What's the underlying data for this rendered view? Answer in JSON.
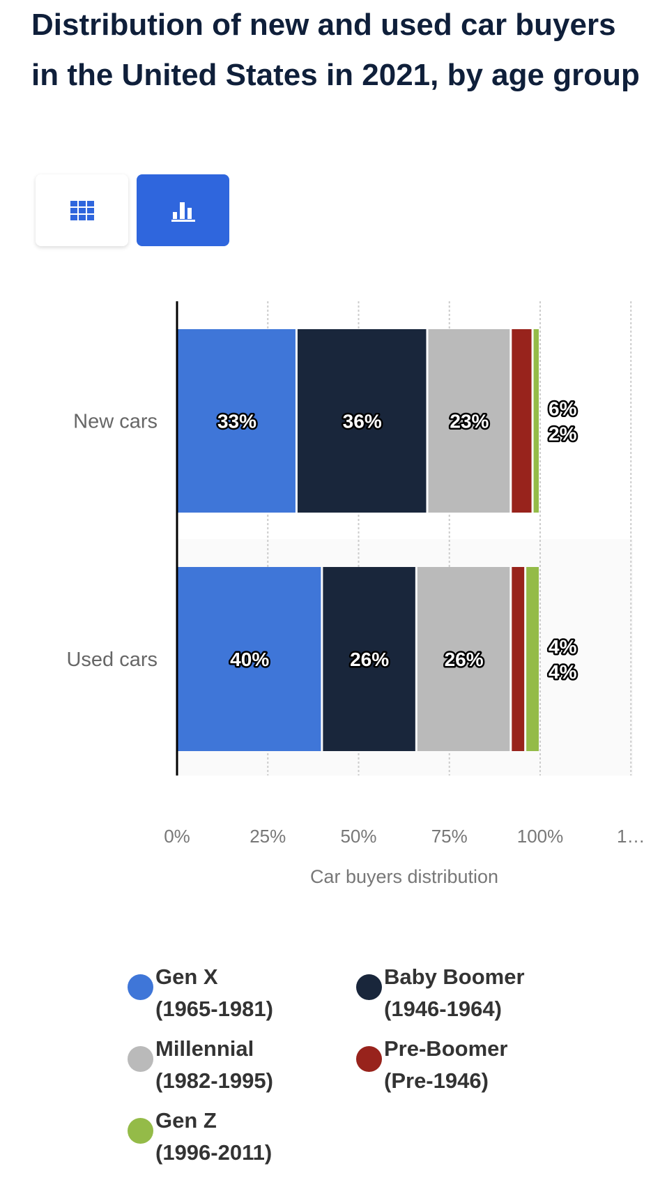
{
  "title": "Distribution of new and used car buyers in the United States in 2021, by age group",
  "view_buttons": [
    {
      "name": "table-view",
      "icon": "grid-icon"
    },
    {
      "name": "chart-view",
      "icon": "bar-chart-icon",
      "active": true
    }
  ],
  "chart_data": {
    "type": "bar",
    "orientation": "horizontal",
    "stacked": true,
    "categories": [
      "New cars",
      "Used cars"
    ],
    "series": [
      {
        "name": "Gen X",
        "sub": "(1965-1981)",
        "color": "#3f76d8",
        "values": [
          33,
          40
        ]
      },
      {
        "name": "Baby Boomer",
        "sub": "(1946-1964)",
        "color": "#19263b",
        "values": [
          36,
          26
        ]
      },
      {
        "name": "Millennial",
        "sub": "(1982-1995)",
        "color": "#bababa",
        "values": [
          23,
          26
        ]
      },
      {
        "name": "Pre-Boomer",
        "sub": "(Pre-1946)",
        "color": "#98231c",
        "values": [
          6,
          4
        ]
      },
      {
        "name": "Gen Z",
        "sub": "(1996-2011)",
        "color": "#94bb48",
        "values": [
          2,
          4
        ]
      }
    ],
    "xlabel": "Car buyers distribution",
    "xticks": [
      "0%",
      "25%",
      "50%",
      "75%",
      "100%",
      "1…"
    ],
    "xlim": [
      0,
      125
    ],
    "grid": true,
    "legend_position": "bottom"
  }
}
